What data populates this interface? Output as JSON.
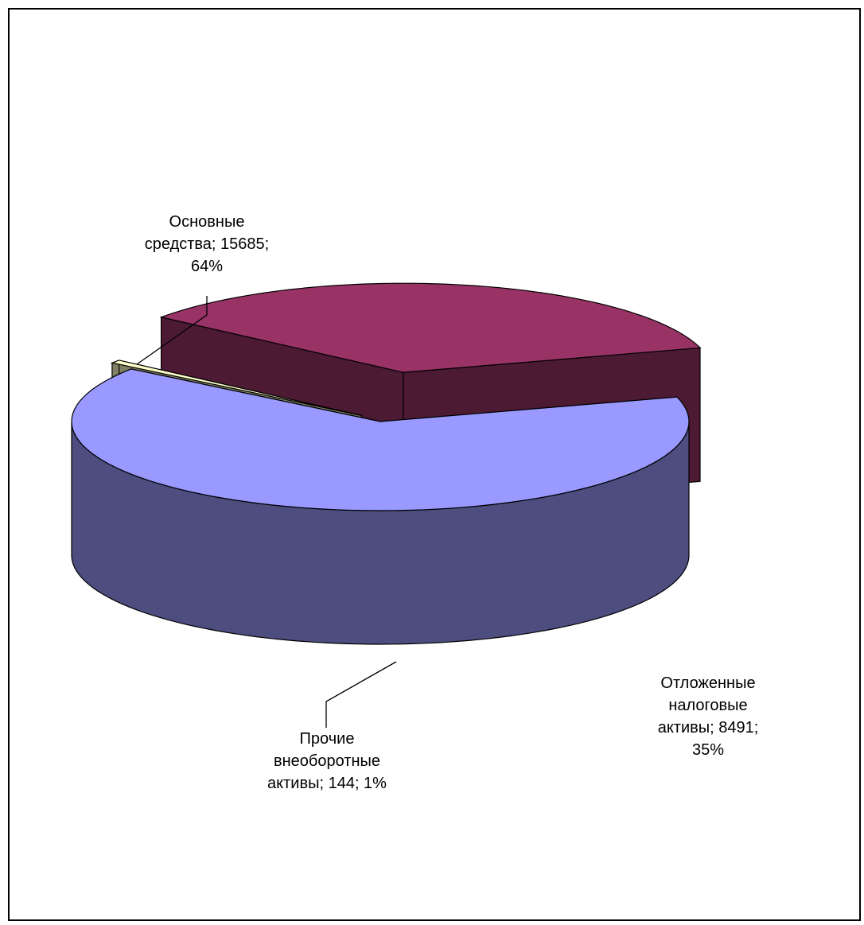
{
  "chart_data": {
    "type": "pie",
    "style": "3d-exploded",
    "slices": [
      {
        "category": "Основные средства",
        "value": 15685,
        "percent": 64,
        "label_lines": [
          "Основные",
          "средства; 15685;",
          "64%"
        ],
        "top_color": "#9999FF",
        "side_color": "#4D4D80"
      },
      {
        "category": "Прочие внеоборотные активы",
        "value": 144,
        "percent": 1,
        "label_lines": [
          "Прочие",
          "внеоборотные",
          "активы; 144; 1%"
        ],
        "top_color": "#FFFFCC",
        "side_color": "#808066"
      },
      {
        "category": "Отложенные налоговые активы",
        "value": 8491,
        "percent": 35,
        "label_lines": [
          "Отложенные",
          "налоговые",
          "активы; 8491;",
          "35%"
        ],
        "top_color": "#993366",
        "side_color": "#4D1A33"
      }
    ]
  }
}
